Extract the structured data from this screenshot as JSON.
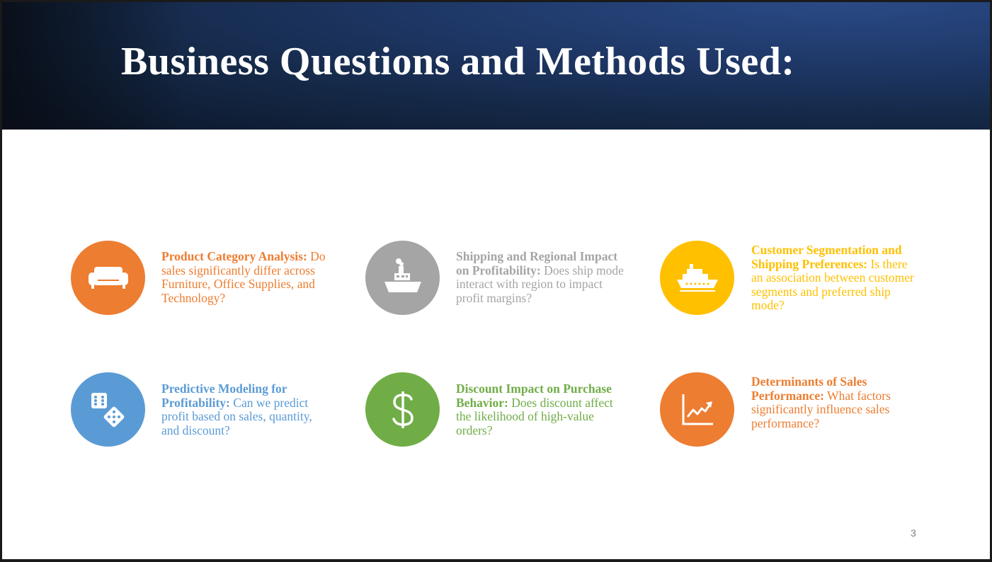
{
  "slide": {
    "title": "Business Questions and Methods Used:",
    "page_number": "3"
  },
  "items": [
    {
      "icon": "sofa-icon",
      "color": "#ED7D31",
      "heading": "Product Category Analysis:",
      "body": " Do sales significantly differ across Furniture, Office Supplies, and Technology?"
    },
    {
      "icon": "tugboat-icon",
      "color": "#A5A5A5",
      "heading": "Shipping and Regional Impact on Profitability:",
      "body": " Does ship mode interact with region to impact profit margins?"
    },
    {
      "icon": "cruise-ship-icon",
      "color": "#FFC000",
      "heading": "Customer Segmentation and Shipping Preferences:",
      "body": " Is there an association between customer segments and preferred ship mode?"
    },
    {
      "icon": "dice-icon",
      "color": "#5B9BD5",
      "heading": "Predictive Modeling for Profitability:",
      "body": " Can we predict profit based on sales, quantity, and discount?"
    },
    {
      "icon": "dollar-sign-icon",
      "color": "#70AD47",
      "heading": "Discount Impact on Purchase Behavior:",
      "body": " Does discount affect the likelihood of high-value orders?"
    },
    {
      "icon": "trend-chart-icon",
      "color": "#ED7D31",
      "heading": "Determinants of Sales Performance:",
      "body": " What factors significantly influence sales performance?"
    }
  ]
}
